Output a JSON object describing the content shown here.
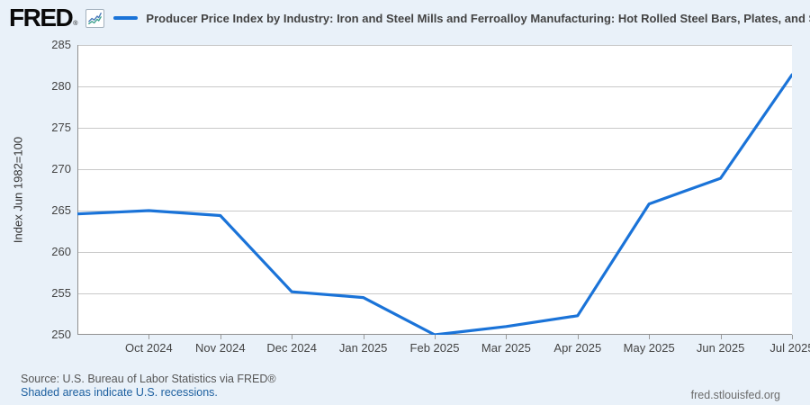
{
  "header": {
    "logo": "FRED",
    "registered_mark": "®",
    "sparkline_icon": "sparkline-chart-icon",
    "series_label": "Producer Price Index by Industry: Iron and Steel Mills and Ferroalloy Manufacturing: Hot Rolled Steel Bars, Plates, and S"
  },
  "chart_data": {
    "type": "line",
    "series_name": "Producer Price Index by Industry: Iron and Steel Mills and Ferroalloy Manufacturing: Hot Rolled Steel Bars, Plates, and S",
    "x": [
      "Sep 2024",
      "Oct 2024",
      "Nov 2024",
      "Dec 2024",
      "Jan 2025",
      "Feb 2025",
      "Mar 2025",
      "Apr 2025",
      "May 2025",
      "Jun 2025",
      "Jul 2025"
    ],
    "values": [
      264.6,
      265.0,
      264.4,
      255.2,
      254.5,
      250.0,
      251.0,
      252.3,
      265.8,
      268.9,
      281.4
    ],
    "xtick_labels": [
      "Oct 2024",
      "Nov 2024",
      "Dec 2024",
      "Jan 2025",
      "Feb 2025",
      "Mar 2025",
      "Apr 2025",
      "May 2025",
      "Jun 2025",
      "Jul 2025"
    ],
    "ylabel": "Index Jun 1982=100",
    "ylim": [
      250,
      285
    ],
    "yticks": [
      250,
      255,
      260,
      265,
      270,
      275,
      280,
      285
    ],
    "grid": "horizontal",
    "legend_position": "top"
  },
  "colors": {
    "line": "#1a73d8",
    "grid": "#c9c9c9",
    "axis": "#919191",
    "background": "#e9f1f9",
    "plot_background": "#ffffff",
    "link": "#1c5f9f",
    "tick_text": "#444444",
    "icon_line_blue": "#4577b8",
    "icon_line_teal": "#3aa08c"
  },
  "footer": {
    "source": "Source: U.S. Bureau of Labor Statistics via FRED®",
    "recession_note": "Shaded areas indicate U.S. recessions.",
    "site": "fred.stlouisfed.org"
  }
}
